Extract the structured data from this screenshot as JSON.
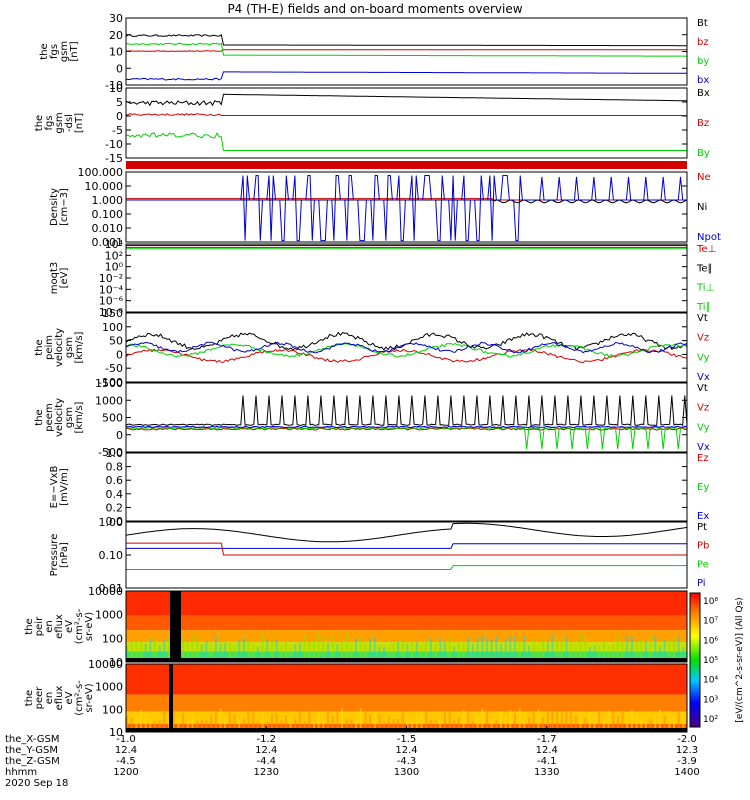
{
  "title": "P4 (TH-E) fields and on-board moments overview",
  "colors": {
    "black": "#000000",
    "red": "#d40000",
    "green": "#00d000",
    "blue": "#0000d0",
    "panel_bg": "#ffffff",
    "frame": "#000000"
  },
  "chart_data": {
    "type": "line",
    "x_time_labels": [
      "1200",
      "1230",
      "1300",
      "1330",
      "1400"
    ],
    "ephemeris": {
      "rows": [
        {
          "label": "the_X-GSM",
          "values": [
            "-1.0",
            "-1.2",
            "-1.5",
            "-1.7",
            "-2.0"
          ]
        },
        {
          "label": "the_Y-GSM",
          "values": [
            "12.4",
            "12.4",
            "12.4",
            "12.4",
            "12.3"
          ]
        },
        {
          "label": "the_Z-GSM",
          "values": [
            "-4.5",
            "-4.4",
            "-4.3",
            "-4.1",
            "-3.9"
          ]
        },
        {
          "label": "hhmm",
          "values": [
            "1200",
            "1230",
            "1300",
            "1330",
            "1400"
          ]
        }
      ],
      "date": "2020 Sep 18"
    },
    "panels": [
      {
        "id": "fgs_gsm",
        "ylabel": [
          "the",
          "fgs",
          "gsm",
          "[nT]"
        ],
        "type": "line",
        "ticks": [
          "30",
          "20",
          "10",
          "0",
          "-10"
        ],
        "ylim": [
          -10,
          30
        ],
        "legend": [
          {
            "t": "Bt",
            "c": "black"
          },
          {
            "t": "bz",
            "c": "red"
          },
          {
            "t": "by",
            "c": "green"
          },
          {
            "t": "bx",
            "c": "blue"
          }
        ]
      },
      {
        "id": "fgs_dsl",
        "ylabel": [
          "the",
          "fgs",
          "gsm",
          "-dsl",
          "[nT]"
        ],
        "type": "line",
        "ticks": [
          "10",
          "5",
          "0",
          "-5",
          "-10",
          "-15"
        ],
        "ylim": [
          -18,
          10
        ],
        "legend": [
          {
            "t": "Bx",
            "c": "black"
          },
          {
            "t": "Bz",
            "c": "red"
          },
          {
            "t": "By",
            "c": "green"
          }
        ]
      },
      {
        "id": "density",
        "ylabel": [
          "Density",
          "[cm−3]"
        ],
        "type": "line_log",
        "ticks": [
          "100.000",
          "10.000",
          "1.000",
          "0.100",
          "0.010",
          "0.001"
        ],
        "legend": [
          {
            "t": "Ne",
            "c": "red"
          },
          {
            "t": "Ni",
            "c": "black"
          },
          {
            "t": "Npot",
            "c": "blue"
          }
        ]
      },
      {
        "id": "temp",
        "ylabel": [
          "moqt3",
          "[eV]"
        ],
        "type": "line_log",
        "ticks": [
          "10⁴",
          "10²",
          "10⁰",
          "10⁻²",
          "10⁻⁴",
          "10⁻⁶",
          "10⁻⁸"
        ],
        "legend": [
          {
            "t": "Te⊥",
            "c": "red"
          },
          {
            "t": "Te∥",
            "c": "black"
          },
          {
            "t": "Ti⊥",
            "c": "green"
          },
          {
            "t": "Ti∥",
            "c": "green"
          }
        ]
      },
      {
        "id": "peim",
        "ylabel": [
          "the",
          "peim",
          "velocity",
          "gsm",
          "[km/s]"
        ],
        "type": "line",
        "ticks": [
          "150",
          "100",
          "50",
          "0",
          "-50",
          "-100"
        ],
        "ylim": [
          -100,
          150
        ],
        "legend": [
          {
            "t": "Vt",
            "c": "black"
          },
          {
            "t": "Vz",
            "c": "red"
          },
          {
            "t": "Vy",
            "c": "green"
          },
          {
            "t": "Vx",
            "c": "blue"
          }
        ]
      },
      {
        "id": "peem",
        "ylabel": [
          "the",
          "peem",
          "velocity",
          "gsm",
          "[km/s]"
        ],
        "type": "line",
        "ticks": [
          "1500",
          "1000",
          "500",
          "0",
          "-500"
        ],
        "ylim": [
          -700,
          1500
        ],
        "legend": [
          {
            "t": "Vt",
            "c": "black"
          },
          {
            "t": "Vz",
            "c": "red"
          },
          {
            "t": "Vy",
            "c": "green"
          },
          {
            "t": "Vx",
            "c": "blue"
          }
        ]
      },
      {
        "id": "efield",
        "ylabel": [
          "E=−VxB",
          "[mV/m]"
        ],
        "type": "empty",
        "ticks": [
          "1.0",
          "0.8",
          "0.6",
          "0.4",
          "0.2",
          "0.0"
        ],
        "legend": [
          {
            "t": "Ez",
            "c": "red"
          },
          {
            "t": "Ey",
            "c": "green"
          },
          {
            "t": "Ex",
            "c": "blue"
          }
        ]
      },
      {
        "id": "pressure",
        "ylabel": [
          "Pressure",
          "[nPa]"
        ],
        "type": "line_log",
        "ticks": [
          "1.00",
          "0.10",
          "0.01"
        ],
        "legend": [
          {
            "t": "Pt",
            "c": "black"
          },
          {
            "t": "Pb",
            "c": "red"
          },
          {
            "t": "Pe",
            "c": "green"
          },
          {
            "t": "Pi",
            "c": "blue"
          }
        ]
      },
      {
        "id": "peir",
        "ylabel": [
          "the",
          "peir",
          "en",
          "eflux",
          "eV",
          "(cm²-s-",
          "sr-eV)"
        ],
        "type": "spectrogram",
        "ticks": [
          "10000",
          "1000",
          "100",
          "10"
        ]
      },
      {
        "id": "peer",
        "ylabel": [
          "the",
          "peer",
          "en",
          "eflux",
          "eV",
          "(cm²-s-",
          "sr-eV)"
        ],
        "type": "spectrogram",
        "ticks": [
          "10000",
          "1000",
          "100",
          "10"
        ]
      }
    ],
    "colorbar": {
      "ticks": [
        "10⁸",
        "10⁷",
        "10⁶",
        "10⁵",
        "10⁴",
        "10³",
        "10²"
      ],
      "label": "[eV/(cm^2-s-sr-eV)] (All Qs)"
    }
  }
}
